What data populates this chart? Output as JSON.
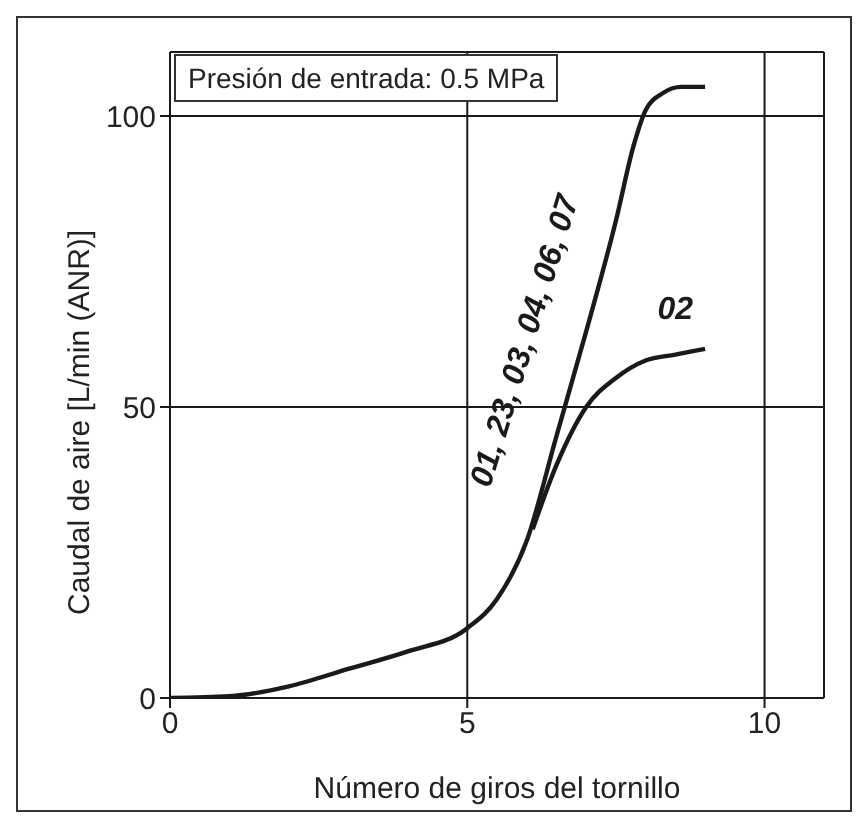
{
  "chart_data": {
    "type": "line",
    "xlabel": "Número de giros del tornillo",
    "ylabel": "Caudal de aire [L/min (ANR)]",
    "xlim": [
      0,
      11
    ],
    "ylim": [
      0,
      111
    ],
    "xticks": [
      0,
      5,
      10
    ],
    "yticks": [
      0,
      50,
      100
    ],
    "grid": true,
    "marker": "none",
    "line_style": "solid",
    "series": [
      {
        "name": "01, 23, 03, 04, 06, 07",
        "color": "#1a1a1a",
        "x": [
          0,
          1,
          2,
          3,
          4,
          5,
          5.5,
          6,
          6.5,
          7,
          7.5,
          7.8,
          8,
          8.3,
          8.6,
          9
        ],
        "values": [
          0,
          0.3,
          2,
          5,
          8,
          12,
          17,
          27,
          45,
          63,
          82,
          95,
          101,
          104,
          105,
          105
        ]
      },
      {
        "name": "02",
        "color": "#1a1a1a",
        "x": [
          6.1,
          6.5,
          7,
          7.5,
          8,
          8.5,
          9
        ],
        "values": [
          29,
          40,
          50,
          55,
          58,
          59,
          60
        ]
      }
    ],
    "annotations": [
      "Presión de entrada: 0.5 MPa"
    ]
  }
}
